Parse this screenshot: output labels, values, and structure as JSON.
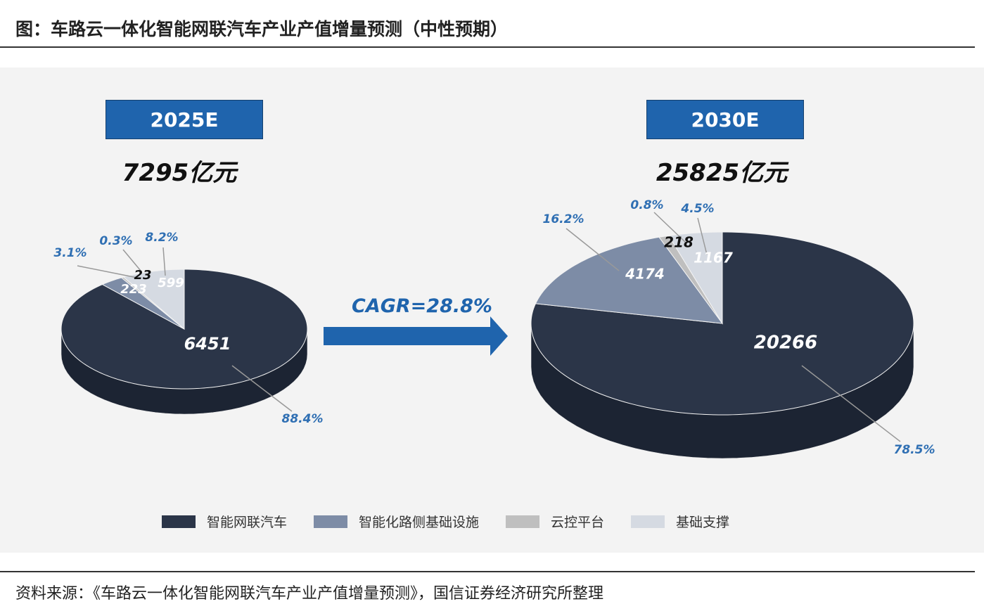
{
  "title": "图：车路云一体化智能网联汽车产业产值增量预测（中性预期）",
  "source": "资料来源：《车路云一体化智能网联汽车产业产值增量预测》，国信证券经济研究所整理",
  "chart_data": [
    {
      "type": "pie",
      "title": "2025E",
      "total_label": "7295亿元",
      "unit": "亿元",
      "slices": [
        {
          "name": "智能网联汽车",
          "value": 6451,
          "pct": "88.4%"
        },
        {
          "name": "智能化路侧基础设施",
          "value": 223,
          "pct": "3.1%"
        },
        {
          "name": "云控平台",
          "value": 23,
          "pct": "0.3%"
        },
        {
          "name": "基础支撑",
          "value": 599,
          "pct": "8.2%"
        }
      ]
    },
    {
      "type": "pie",
      "title": "2030E",
      "total_label": "25825亿元",
      "unit": "亿元",
      "slices": [
        {
          "name": "智能网联汽车",
          "value": 20266,
          "pct": "78.5%"
        },
        {
          "name": "智能化路侧基础设施",
          "value": 4174,
          "pct": "16.2%"
        },
        {
          "name": "云控平台",
          "value": 218,
          "pct": "0.8%"
        },
        {
          "name": "基础支撑",
          "value": 1167,
          "pct": "4.5%"
        }
      ]
    }
  ],
  "cagr_label": "CAGR=28.8%",
  "legend": [
    {
      "name": "智能网联汽车",
      "color": "#2b3548"
    },
    {
      "name": "智能化路侧基础设施",
      "color": "#7d8ca6"
    },
    {
      "name": "云控平台",
      "color": "#bfbfbf"
    },
    {
      "name": "基础支撑",
      "color": "#d5dae2"
    }
  ],
  "legend_position": "bottom",
  "accent_color": "#1f64ad"
}
